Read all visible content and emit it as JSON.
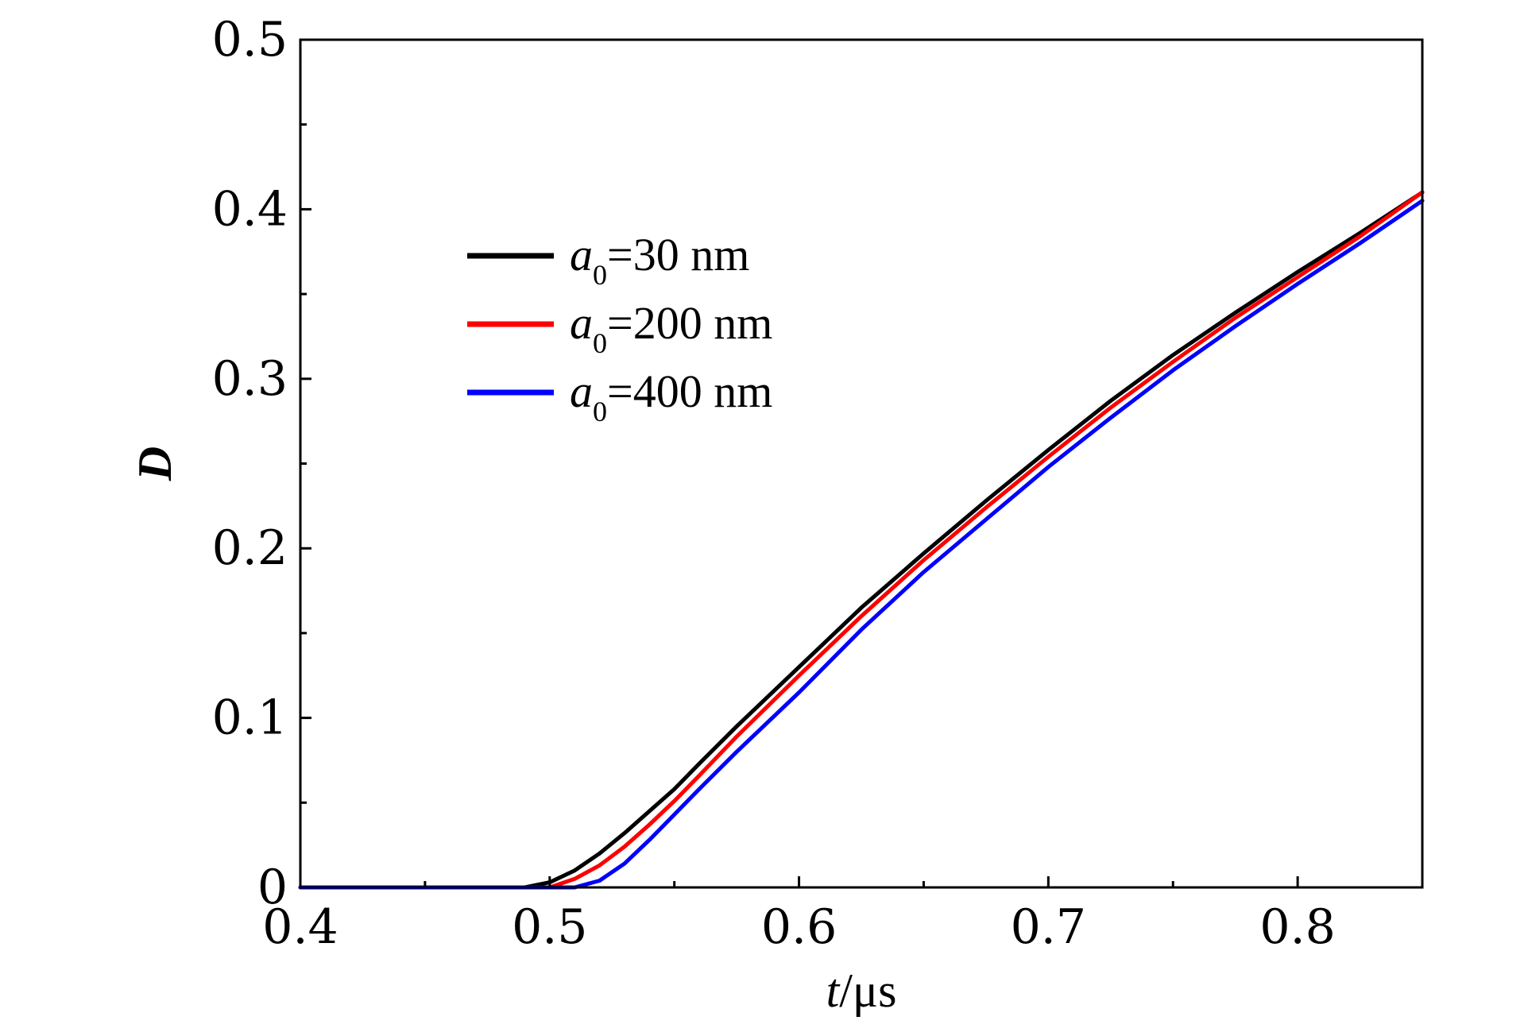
{
  "chart_data": {
    "type": "line",
    "title": "",
    "xlabel": {
      "italic": "t",
      "rest": "/μs"
    },
    "ylabel": "D",
    "xlim": [
      0.4,
      0.85
    ],
    "ylim": [
      0,
      0.5
    ],
    "x_ticks": [
      0.4,
      0.5,
      0.6,
      0.7,
      0.8
    ],
    "x_tick_labels": [
      "0.4",
      "0.5",
      "0.6",
      "0.7",
      "0.8"
    ],
    "x_minor_ticks": [
      0.45,
      0.55,
      0.65,
      0.75
    ],
    "y_ticks": [
      0,
      0.1,
      0.2,
      0.3,
      0.4,
      0.5
    ],
    "y_tick_labels": [
      "0",
      "0.1",
      "0.2",
      "0.3",
      "0.4",
      "0.5"
    ],
    "y_minor_ticks": [
      0.05,
      0.15,
      0.25,
      0.35,
      0.45
    ],
    "grid": false,
    "legend_position": "upper-left",
    "series": [
      {
        "name": "a0=30 nm",
        "legend": {
          "symbol": "a",
          "subscript": "0",
          "rest": "=30 nm"
        },
        "color": "#000000",
        "x": [
          0.4,
          0.49,
          0.5,
          0.51,
          0.52,
          0.53,
          0.54,
          0.55,
          0.56,
          0.575,
          0.6,
          0.625,
          0.65,
          0.675,
          0.7,
          0.725,
          0.75,
          0.775,
          0.8,
          0.825,
          0.85
        ],
        "y": [
          0,
          0,
          0.003,
          0.01,
          0.02,
          0.032,
          0.045,
          0.058,
          0.073,
          0.095,
          0.13,
          0.165,
          0.197,
          0.228,
          0.258,
          0.287,
          0.314,
          0.339,
          0.363,
          0.386,
          0.41
        ]
      },
      {
        "name": "a0=200 nm",
        "legend": {
          "symbol": "a",
          "subscript": "0",
          "rest": "=200 nm"
        },
        "color": "#ff0000",
        "x": [
          0.4,
          0.5,
          0.51,
          0.52,
          0.53,
          0.54,
          0.55,
          0.56,
          0.575,
          0.6,
          0.625,
          0.65,
          0.675,
          0.7,
          0.725,
          0.75,
          0.775,
          0.8,
          0.825,
          0.85
        ],
        "y": [
          0,
          0,
          0.005,
          0.013,
          0.024,
          0.037,
          0.051,
          0.066,
          0.089,
          0.125,
          0.16,
          0.193,
          0.224,
          0.254,
          0.283,
          0.31,
          0.336,
          0.36,
          0.384,
          0.41
        ]
      },
      {
        "name": "a0=400 nm",
        "legend": {
          "symbol": "a",
          "subscript": "0",
          "rest": "=400 nm"
        },
        "color": "#0000ff",
        "x": [
          0.4,
          0.51,
          0.52,
          0.53,
          0.54,
          0.55,
          0.56,
          0.575,
          0.6,
          0.625,
          0.65,
          0.675,
          0.7,
          0.725,
          0.75,
          0.775,
          0.8,
          0.825,
          0.85
        ],
        "y": [
          0,
          0,
          0.004,
          0.014,
          0.028,
          0.043,
          0.058,
          0.08,
          0.115,
          0.152,
          0.186,
          0.217,
          0.248,
          0.277,
          0.305,
          0.331,
          0.356,
          0.38,
          0.405
        ]
      }
    ]
  }
}
